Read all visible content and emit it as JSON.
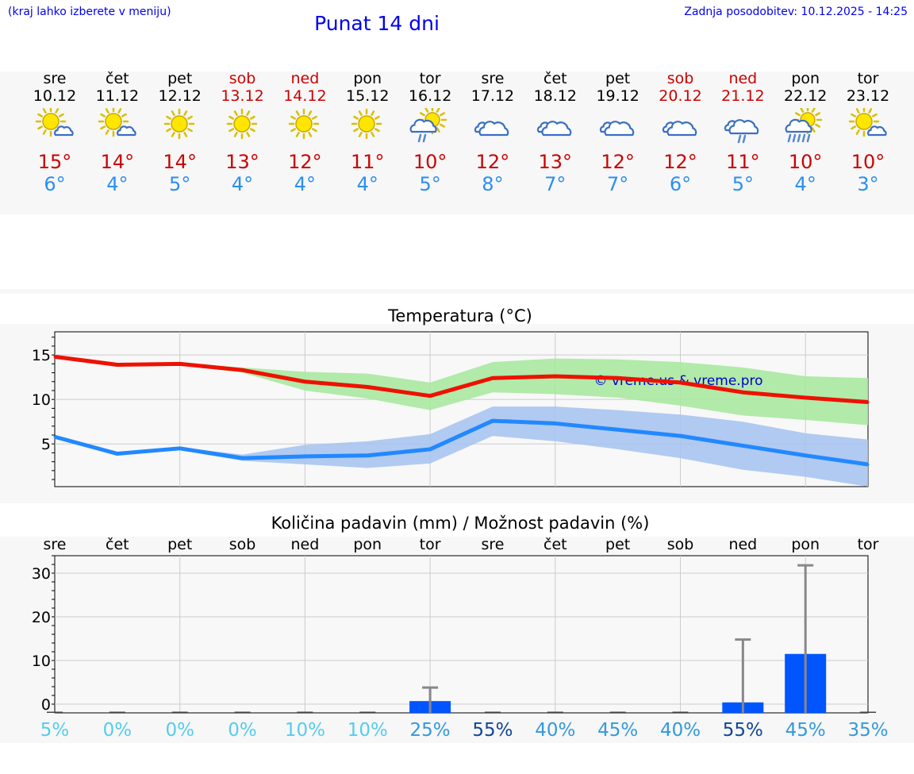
{
  "header": {
    "menu_hint": "(kraj lahko izberete v meniju)",
    "title": "Punat 14 dni",
    "updated": "Zadnja posodobitev: 10.12.2025 - 14:25"
  },
  "days": [
    {
      "name": "sre",
      "date": "10.12",
      "weekend": false,
      "icon": "sun-cloud-icon",
      "tmax": "15°",
      "tmin": "6°"
    },
    {
      "name": "čet",
      "date": "11.12",
      "weekend": false,
      "icon": "sun-cloud-icon",
      "tmax": "14°",
      "tmin": "4°"
    },
    {
      "name": "pet",
      "date": "12.12",
      "weekend": false,
      "icon": "sun-icon",
      "tmax": "14°",
      "tmin": "5°"
    },
    {
      "name": "sob",
      "date": "13.12",
      "weekend": true,
      "icon": "sun-icon",
      "tmax": "13°",
      "tmin": "4°"
    },
    {
      "name": "ned",
      "date": "14.12",
      "weekend": true,
      "icon": "sun-icon",
      "tmax": "12°",
      "tmin": "4°"
    },
    {
      "name": "pon",
      "date": "15.12",
      "weekend": false,
      "icon": "sun-icon",
      "tmax": "11°",
      "tmin": "4°"
    },
    {
      "name": "tor",
      "date": "16.12",
      "weekend": false,
      "icon": "sun-cloud-rain-icon",
      "tmax": "10°",
      "tmin": "5°"
    },
    {
      "name": "sre",
      "date": "17.12",
      "weekend": false,
      "icon": "cloud-icon",
      "tmax": "12°",
      "tmin": "8°"
    },
    {
      "name": "čet",
      "date": "18.12",
      "weekend": false,
      "icon": "cloud-icon",
      "tmax": "13°",
      "tmin": "7°"
    },
    {
      "name": "pet",
      "date": "19.12",
      "weekend": false,
      "icon": "cloud-icon",
      "tmax": "12°",
      "tmin": "7°"
    },
    {
      "name": "sob",
      "date": "20.12",
      "weekend": true,
      "icon": "cloud-icon",
      "tmax": "12°",
      "tmin": "6°"
    },
    {
      "name": "ned",
      "date": "21.12",
      "weekend": true,
      "icon": "cloud-rain-icon",
      "tmax": "11°",
      "tmin": "5°"
    },
    {
      "name": "pon",
      "date": "22.12",
      "weekend": false,
      "icon": "sun-rain-heavy-icon",
      "tmax": "10°",
      "tmin": "4°"
    },
    {
      "name": "tor",
      "date": "23.12",
      "weekend": false,
      "icon": "sun-cloud-icon",
      "tmax": "10°",
      "tmin": "3°"
    }
  ],
  "colors": {
    "link": "#0000ee",
    "tmax_text": "#cc0000",
    "tmin_text": "#2b8ff0",
    "max_line": "#ee1100",
    "max_band": "#a8e8a0",
    "min_line": "#2288ff",
    "min_band": "#a8c4f0",
    "precip_bar": "#0055ff",
    "error_bar": "#888888",
    "pct_light": "#55ccee",
    "pct_mid": "#3399dd",
    "pct_dark": "#114499"
  },
  "chart_data": [
    {
      "type": "line",
      "title": "Temperatura (°C)",
      "watermark": "© vreme.us & vreme.pro",
      "xlabel": "",
      "ylabel": "",
      "categories": [
        "10.12",
        "11.12",
        "12.12",
        "13.12",
        "14.12",
        "15.12",
        "16.12",
        "17.12",
        "18.12",
        "19.12",
        "20.12",
        "21.12",
        "22.12",
        "23.12"
      ],
      "yticks": [
        5,
        10,
        15
      ],
      "ylim": [
        0.2,
        17.6
      ],
      "grid": true,
      "series": [
        {
          "name": "max",
          "values": [
            14.8,
            13.9,
            14.0,
            13.3,
            12.0,
            11.4,
            10.4,
            12.4,
            12.6,
            12.4,
            11.9,
            10.8,
            10.2,
            9.7
          ],
          "band_low": [
            14.8,
            13.9,
            13.9,
            13.0,
            11.0,
            10.1,
            8.8,
            10.8,
            10.6,
            10.2,
            9.3,
            8.2,
            7.7,
            7.1
          ],
          "band_high": [
            15.0,
            14.0,
            14.1,
            13.6,
            13.1,
            12.9,
            11.9,
            14.2,
            14.6,
            14.5,
            14.2,
            13.6,
            12.6,
            12.4
          ]
        },
        {
          "name": "min",
          "values": [
            5.8,
            3.9,
            4.5,
            3.4,
            3.6,
            3.7,
            4.4,
            7.6,
            7.3,
            6.6,
            5.9,
            4.8,
            3.7,
            2.7
          ],
          "band_low": [
            5.8,
            3.8,
            4.3,
            3.1,
            2.7,
            2.3,
            2.8,
            5.9,
            5.3,
            4.4,
            3.4,
            2.1,
            1.3,
            0.2
          ],
          "band_high": [
            5.9,
            4.1,
            4.6,
            3.8,
            4.9,
            5.3,
            6.1,
            9.2,
            9.2,
            8.8,
            8.3,
            7.5,
            6.2,
            5.5
          ]
        }
      ]
    },
    {
      "type": "bar",
      "title": "Količina padavin (mm) / Možnost padavin (%)",
      "xlabel": "",
      "ylabel": "",
      "categories": [
        "sre",
        "čet",
        "pet",
        "sob",
        "ned",
        "pon",
        "tor",
        "sre",
        "čet",
        "pet",
        "sob",
        "ned",
        "pon",
        "tor"
      ],
      "yticks": [
        0,
        10,
        20,
        30
      ],
      "ylim": [
        -2,
        34
      ],
      "grid": true,
      "series": [
        {
          "name": "padavine_mm",
          "values": [
            0,
            0,
            0,
            0,
            0,
            0,
            0.7,
            0,
            0,
            0,
            0,
            0.4,
            11.5,
            0
          ],
          "error_high": [
            0,
            0,
            0,
            0,
            0,
            0,
            3.8,
            0,
            0,
            0,
            0,
            14.8,
            31.8,
            0
          ]
        }
      ],
      "probability_labels": [
        "5%",
        "0%",
        "0%",
        "0%",
        "10%",
        "10%",
        "25%",
        "55%",
        "40%",
        "45%",
        "40%",
        "55%",
        "45%",
        "35%"
      ],
      "probability_values": [
        5,
        0,
        0,
        0,
        10,
        10,
        25,
        55,
        40,
        45,
        40,
        55,
        45,
        35
      ]
    }
  ]
}
